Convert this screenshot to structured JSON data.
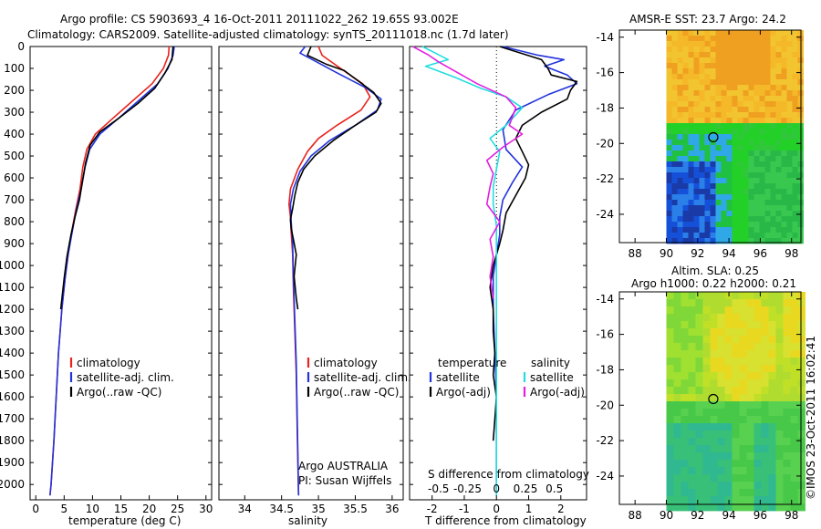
{
  "header": {
    "line1": "Argo profile: CS 5903693_4 16-Oct-2011 20111022_262 19.65S 93.002E",
    "line2": "Climatology: CARS2009. Satellite-adjusted climatology: synTS_20111018.nc (1.7d later)"
  },
  "watermark": "©IMOS 23-Oct-2011 16:02:41",
  "colors": {
    "climatology": "#e8231c",
    "satellite": "#2233dd",
    "argo": "#000000",
    "sal_satellite": "#22dde0",
    "sal_argo": "#e020e0"
  },
  "chart_data": [
    {
      "type": "line",
      "id": "temperature",
      "xlabel": "temperature (deg C)",
      "ylabel": "",
      "xlim": [
        -1,
        31
      ],
      "ylim": [
        2070,
        0
      ],
      "xticks": [
        "0",
        "5",
        "10",
        "15",
        "20",
        "25",
        "30"
      ],
      "xtick_values": [
        0,
        5,
        10,
        15,
        20,
        25,
        30
      ],
      "yticks": [
        "0",
        "100",
        "200",
        "300",
        "400",
        "500",
        "600",
        "700",
        "800",
        "900",
        "1000",
        "1100",
        "1200",
        "1300",
        "1400",
        "1500",
        "1600",
        "1700",
        "1800",
        "1900",
        "2000"
      ],
      "ytick_values": [
        0,
        100,
        200,
        300,
        400,
        500,
        600,
        700,
        800,
        900,
        1000,
        1100,
        1200,
        1300,
        1400,
        1500,
        1600,
        1700,
        1800,
        1900,
        2000
      ],
      "legend": [
        "climatology",
        "satellite-adj. clim.",
        "Argo(..raw -QC)"
      ],
      "series": [
        {
          "name": "climatology",
          "color": "#e8231c",
          "points": [
            [
              23.5,
              0
            ],
            [
              23.4,
              40
            ],
            [
              22.5,
              100
            ],
            [
              20.5,
              170
            ],
            [
              17,
              250
            ],
            [
              13.5,
              330
            ],
            [
              10.5,
              400
            ],
            [
              9,
              470
            ],
            [
              8.3,
              550
            ],
            [
              7.8,
              650
            ],
            [
              7,
              750
            ],
            [
              6.3,
              850
            ],
            [
              5.7,
              950
            ],
            [
              5.2,
              1050
            ],
            [
              4.6,
              1200
            ],
            [
              4,
              1400
            ],
            [
              3.6,
              1600
            ],
            [
              3.2,
              1800
            ],
            [
              2.7,
              2000
            ],
            [
              2.5,
              2050
            ]
          ]
        },
        {
          "name": "satellite-adj. clim.",
          "color": "#2233dd",
          "points": [
            [
              24.4,
              0
            ],
            [
              24.2,
              40
            ],
            [
              23.3,
              100
            ],
            [
              21.5,
              170
            ],
            [
              18,
              250
            ],
            [
              14.5,
              330
            ],
            [
              11.3,
              400
            ],
            [
              9.5,
              470
            ],
            [
              8.7,
              550
            ],
            [
              8,
              650
            ],
            [
              7.1,
              750
            ],
            [
              6.4,
              850
            ],
            [
              5.7,
              950
            ],
            [
              5.2,
              1050
            ],
            [
              4.6,
              1200
            ],
            [
              4,
              1400
            ],
            [
              3.6,
              1600
            ],
            [
              3.2,
              1800
            ],
            [
              2.7,
              2000
            ],
            [
              2.5,
              2050
            ]
          ]
        },
        {
          "name": "Argo(..raw -QC)",
          "color": "#000000",
          "points": [
            [
              24.2,
              0
            ],
            [
              24,
              60
            ],
            [
              22.8,
              120
            ],
            [
              21,
              190
            ],
            [
              18,
              260
            ],
            [
              14.5,
              330
            ],
            [
              11.3,
              390
            ],
            [
              9.6,
              450
            ],
            [
              8.8,
              530
            ],
            [
              8.2,
              620
            ],
            [
              7.7,
              700
            ],
            [
              6.9,
              780
            ],
            [
              6.2,
              860
            ],
            [
              5.5,
              960
            ],
            [
              5,
              1060
            ],
            [
              4.4,
              1200
            ]
          ]
        }
      ]
    },
    {
      "type": "line",
      "id": "salinity",
      "xlabel": "salinity",
      "ylabel": "",
      "xlim": [
        33.65,
        36.15
      ],
      "ylim": [
        2070,
        0
      ],
      "xticks": [
        "34",
        "34.5",
        "35",
        "35.5",
        "36"
      ],
      "xtick_values": [
        34,
        34.5,
        35,
        35.5,
        36
      ],
      "legend": [
        "climatology",
        "satellite-adj. clim.",
        "Argo(..raw -QC)"
      ],
      "note": [
        "Argo AUSTRALIA",
        "PI: Susan Wijffels"
      ],
      "series": [
        {
          "name": "climatology",
          "color": "#e8231c",
          "points": [
            [
              35,
              0
            ],
            [
              35.05,
              40
            ],
            [
              35.3,
              100
            ],
            [
              35.6,
              170
            ],
            [
              35.7,
              230
            ],
            [
              35.58,
              290
            ],
            [
              35.25,
              360
            ],
            [
              35,
              420
            ],
            [
              34.85,
              480
            ],
            [
              34.72,
              560
            ],
            [
              34.62,
              650
            ],
            [
              34.6,
              720
            ],
            [
              34.62,
              780
            ],
            [
              34.63,
              850
            ],
            [
              34.65,
              950
            ],
            [
              34.66,
              1100
            ],
            [
              34.68,
              1300
            ],
            [
              34.7,
              1500
            ],
            [
              34.71,
              1700
            ],
            [
              34.72,
              1900
            ],
            [
              34.73,
              2050
            ]
          ]
        },
        {
          "name": "satellite-adj. clim.",
          "color": "#2233dd",
          "points": [
            [
              34.82,
              0
            ],
            [
              34.75,
              30
            ],
            [
              34.92,
              60
            ],
            [
              35.25,
              120
            ],
            [
              35.65,
              190
            ],
            [
              35.85,
              240
            ],
            [
              35.8,
              290
            ],
            [
              35.5,
              360
            ],
            [
              35.15,
              430
            ],
            [
              34.9,
              500
            ],
            [
              34.75,
              570
            ],
            [
              34.66,
              650
            ],
            [
              34.62,
              720
            ],
            [
              34.63,
              800
            ],
            [
              34.65,
              900
            ],
            [
              34.66,
              1050
            ],
            [
              34.68,
              1250
            ],
            [
              34.7,
              1450
            ],
            [
              34.71,
              1650
            ],
            [
              34.72,
              1850
            ],
            [
              34.73,
              2050
            ]
          ]
        },
        {
          "name": "Argo(..raw -QC)",
          "color": "#000000",
          "points": [
            [
              34.9,
              0
            ],
            [
              34.85,
              40
            ],
            [
              35.1,
              80
            ],
            [
              35.35,
              110
            ],
            [
              35.55,
              160
            ],
            [
              35.75,
              210
            ],
            [
              35.85,
              260
            ],
            [
              35.78,
              300
            ],
            [
              35.5,
              360
            ],
            [
              35.2,
              430
            ],
            [
              34.95,
              500
            ],
            [
              34.8,
              560
            ],
            [
              34.72,
              620
            ],
            [
              34.68,
              680
            ],
            [
              34.65,
              740
            ],
            [
              34.62,
              790
            ],
            [
              34.63,
              830
            ],
            [
              34.66,
              880
            ],
            [
              34.7,
              950
            ],
            [
              34.67,
              1050
            ],
            [
              34.7,
              1150
            ],
            [
              34.72,
              1200
            ]
          ]
        }
      ]
    },
    {
      "type": "line",
      "id": "difference",
      "xlabel": "T difference from climatology",
      "xlabel_top": "S difference from climatology",
      "xlim": [
        -2.7,
        2.8
      ],
      "ylim": [
        2070,
        0
      ],
      "xticks": [
        "-2",
        "-1",
        "0",
        "1",
        "2"
      ],
      "xtick_values": [
        -2,
        -1,
        0,
        1,
        2
      ],
      "sticks": [
        "-0.5",
        "-0.25",
        "0",
        "0.25",
        "0.5"
      ],
      "stick_positions": [
        -1.8,
        -0.9,
        0,
        0.9,
        1.8
      ],
      "legend_t_title": "temperature",
      "legend_s_title": "salinity",
      "legend_t": [
        "satellite",
        "Argo(-adj)"
      ],
      "legend_s": [
        "satellite",
        "Argo(-adj)"
      ],
      "series": [
        {
          "name": "temperature satellite",
          "color": "#2233dd",
          "points": [
            [
              0.2,
              0
            ],
            [
              1.3,
              40
            ],
            [
              2.1,
              60
            ],
            [
              1.5,
              90
            ],
            [
              2.2,
              130
            ],
            [
              2.5,
              170
            ],
            [
              1.6,
              220
            ],
            [
              0.6,
              290
            ],
            [
              0.2,
              380
            ],
            [
              0.3,
              470
            ],
            [
              0.8,
              550
            ],
            [
              0.5,
              620
            ],
            [
              0.2,
              700
            ],
            [
              0.1,
              780
            ],
            [
              0.1,
              860
            ],
            [
              0,
              950
            ],
            [
              -0.1,
              1050
            ],
            [
              -0.1,
              1200
            ],
            [
              -0.05,
              1400
            ],
            [
              0,
              1600
            ],
            [
              0,
              1800
            ],
            [
              0,
              2000
            ]
          ]
        },
        {
          "name": "temperature Argo(-adj)",
          "color": "#000000",
          "points": [
            [
              0.1,
              0
            ],
            [
              1.4,
              60
            ],
            [
              1.6,
              100
            ],
            [
              1.7,
              130
            ],
            [
              2.5,
              160
            ],
            [
              2.3,
              200
            ],
            [
              2.2,
              240
            ],
            [
              1.4,
              300
            ],
            [
              0.8,
              360
            ],
            [
              0.6,
              420
            ],
            [
              0.8,
              480
            ],
            [
              1,
              540
            ],
            [
              0.9,
              600
            ],
            [
              0.6,
              680
            ],
            [
              0.3,
              760
            ],
            [
              0.2,
              840
            ],
            [
              0.1,
              900
            ],
            [
              -0.1,
              1000
            ],
            [
              -0.2,
              1100
            ],
            [
              -0.1,
              1200
            ],
            [
              -0.1,
              1300
            ],
            [
              -0.05,
              1400
            ],
            [
              -0.1,
              1500
            ],
            [
              0,
              1600
            ],
            [
              -0.05,
              1700
            ],
            [
              -0.1,
              1800
            ]
          ]
        },
        {
          "name": "salinity satellite",
          "color": "#22dde0",
          "points": [
            [
              -2.3,
              0
            ],
            [
              -1.9,
              30
            ],
            [
              -1.5,
              60
            ],
            [
              -2.2,
              90
            ],
            [
              -1.3,
              140
            ],
            [
              -0.5,
              190
            ],
            [
              0.3,
              230
            ],
            [
              0.8,
              280
            ],
            [
              0.3,
              360
            ],
            [
              -0.2,
              420
            ],
            [
              0.1,
              480
            ],
            [
              0,
              560
            ],
            [
              -0.1,
              640
            ],
            [
              -0.1,
              720
            ],
            [
              0,
              820
            ],
            [
              0,
              950
            ],
            [
              0,
              1100
            ],
            [
              0,
              1300
            ],
            [
              0,
              1500
            ],
            [
              0,
              1700
            ],
            [
              0,
              1900
            ],
            [
              0,
              2050
            ]
          ]
        },
        {
          "name": "salinity Argo(-adj)",
          "color": "#e020e0",
          "points": [
            [
              -2.6,
              0
            ],
            [
              -2.1,
              40
            ],
            [
              -1.8,
              70
            ],
            [
              -1.2,
              120
            ],
            [
              -0.6,
              170
            ],
            [
              0.3,
              230
            ],
            [
              0.6,
              280
            ],
            [
              0.5,
              320
            ],
            [
              0.4,
              360
            ],
            [
              0.8,
              400
            ],
            [
              0.2,
              460
            ],
            [
              -0.3,
              520
            ],
            [
              -0.1,
              580
            ],
            [
              -0.2,
              640
            ],
            [
              -0.3,
              720
            ],
            [
              0.1,
              800
            ],
            [
              -0.2,
              880
            ],
            [
              -0.1,
              960
            ],
            [
              -0.2,
              1050
            ],
            [
              -0.1,
              1150
            ]
          ]
        }
      ]
    },
    {
      "type": "heatmap",
      "id": "sst_map",
      "title": "AMSR-E SST: 23.7 Argo: 24.2",
      "xlim": [
        87,
        98.6
      ],
      "ylim": [
        -25.6,
        -13.6
      ],
      "xticks": [
        "88",
        "90",
        "92",
        "94",
        "96",
        "98"
      ],
      "xtick_values": [
        88,
        90,
        92,
        94,
        96,
        98
      ],
      "yticks": [
        "-14",
        "-16",
        "-18",
        "-20",
        "-22",
        "-24"
      ],
      "ytick_values": [
        -14,
        -16,
        -18,
        -20,
        -22,
        -24
      ],
      "argo_marker": [
        93.0,
        -19.65
      ]
    },
    {
      "type": "heatmap",
      "id": "sla_map",
      "title": "Altim. SLA: 0.25",
      "subtitle": "Argo h1000: 0.22 h2000: 0.21",
      "xlim": [
        87,
        98.6
      ],
      "ylim": [
        -25.6,
        -13.6
      ],
      "xticks": [
        "88",
        "90",
        "92",
        "94",
        "96",
        "98"
      ],
      "xtick_values": [
        88,
        90,
        92,
        94,
        96,
        98
      ],
      "yticks": [
        "-14",
        "-16",
        "-18",
        "-20",
        "-22",
        "-24"
      ],
      "ytick_values": [
        -14,
        -16,
        -18,
        -20,
        -22,
        -24
      ],
      "argo_marker": [
        93.0,
        -19.65
      ]
    }
  ]
}
